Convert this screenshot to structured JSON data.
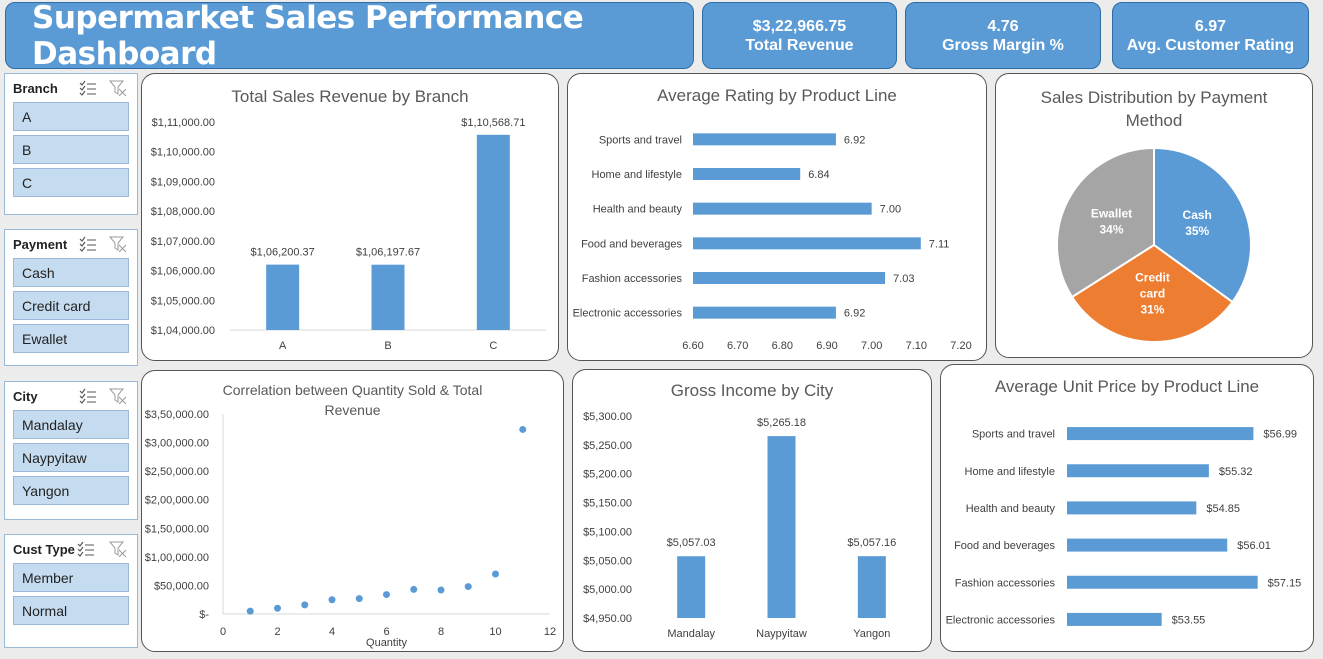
{
  "header": {
    "title": "Supermarket Sales Performance Dashboard"
  },
  "kpis": [
    {
      "value": "$3,22,966.75",
      "label": "Total Revenue"
    },
    {
      "value": "4.76",
      "label": "Gross Margin %"
    },
    {
      "value": "6.97",
      "label": "Avg. Customer  Rating"
    }
  ],
  "slicers": {
    "branch": {
      "title": "Branch",
      "items": [
        "A",
        "B",
        "C"
      ]
    },
    "payment": {
      "title": "Payment",
      "items": [
        "Cash",
        "Credit card",
        "Ewallet"
      ]
    },
    "city": {
      "title": "City",
      "items": [
        "Mandalay",
        "Naypyitaw",
        "Yangon"
      ]
    },
    "cust_type": {
      "title": "Cust Type",
      "items": [
        "Member",
        "Normal"
      ]
    }
  },
  "colors": {
    "accent": "#5b9bd5",
    "orange": "#ed7d31",
    "gray": "#a5a5a5"
  },
  "chart_data": [
    {
      "id": "branch",
      "type": "bar",
      "title": "Total Sales Revenue by Branch",
      "categories": [
        "A",
        "B",
        "C"
      ],
      "values": [
        106200.37,
        106197.67,
        110568.71
      ],
      "data_labels": [
        "$1,06,200.37",
        "$1,06,197.67",
        "$1,10,568.71"
      ],
      "ylim": [
        104000,
        111000
      ],
      "yticks": [
        "$1,04,000.00",
        "$1,05,000.00",
        "$1,06,000.00",
        "$1,07,000.00",
        "$1,08,000.00",
        "$1,09,000.00",
        "$1,10,000.00",
        "$1,11,000.00"
      ]
    },
    {
      "id": "rating",
      "type": "bar",
      "orientation": "horizontal",
      "title": "Average Rating by Product Line",
      "categories": [
        "Sports and travel",
        "Home and lifestyle",
        "Health and beauty",
        "Food and beverages",
        "Fashion accessories",
        "Electronic accessories"
      ],
      "values": [
        6.92,
        6.84,
        7.0,
        7.11,
        7.03,
        6.92
      ],
      "data_labels": [
        "6.92",
        "6.84",
        "7.00",
        "7.11",
        "7.03",
        "6.92"
      ],
      "xlim": [
        6.6,
        7.2
      ],
      "xticks": [
        "6.60",
        "6.70",
        "6.80",
        "6.90",
        "7.00",
        "7.10",
        "7.20"
      ]
    },
    {
      "id": "payment",
      "type": "pie",
      "title": "Sales Distribution by Payment Method",
      "slices": [
        {
          "name": "Cash",
          "value": 35,
          "label": "Cash",
          "pct": "35%",
          "color": "#5b9bd5"
        },
        {
          "name": "Credit card",
          "value": 31,
          "label": "Credit card",
          "pct": "31%",
          "color": "#ed7d31"
        },
        {
          "name": "Ewallet",
          "value": 34,
          "label": "Ewallet",
          "pct": "34%",
          "color": "#a5a5a5"
        }
      ]
    },
    {
      "id": "scatter",
      "type": "scatter",
      "title": "Correlation between Quantity Sold & Total Revenue",
      "xlabel": "Quantity",
      "x": [
        1,
        2,
        3,
        4,
        5,
        6,
        7,
        8,
        9,
        10,
        11
      ],
      "y": [
        5000,
        10000,
        16000,
        25000,
        27000,
        34000,
        43000,
        42000,
        48000,
        70000,
        322966.75
      ],
      "xlim": [
        0,
        12
      ],
      "ylim": [
        0,
        350000
      ],
      "xticks": [
        "0",
        "2",
        "4",
        "6",
        "8",
        "10",
        "12"
      ],
      "yticks": [
        "$-",
        "$50,000.00",
        "$1,00,000.00",
        "$1,50,000.00",
        "$2,00,000.00",
        "$2,50,000.00",
        "$3,00,000.00",
        "$3,50,000.00"
      ]
    },
    {
      "id": "city",
      "type": "bar",
      "title": "Gross Income by City",
      "categories": [
        "Mandalay",
        "Naypyitaw",
        "Yangon"
      ],
      "values": [
        5057.03,
        5265.18,
        5057.16
      ],
      "data_labels": [
        "$5,057.03",
        "$5,265.18",
        "$5,057.16"
      ],
      "ylim": [
        4950,
        5300
      ],
      "yticks": [
        "$4,950.00",
        "$5,000.00",
        "$5,050.00",
        "$5,100.00",
        "$5,150.00",
        "$5,200.00",
        "$5,250.00",
        "$5,300.00"
      ]
    },
    {
      "id": "price",
      "type": "bar",
      "orientation": "horizontal",
      "title": "Average Unit Price by Product Line",
      "categories": [
        "Sports and travel",
        "Home and lifestyle",
        "Health and beauty",
        "Food and beverages",
        "Fashion accessories",
        "Electronic accessories"
      ],
      "values": [
        56.99,
        55.32,
        54.85,
        56.01,
        57.15,
        53.55
      ],
      "data_labels": [
        "$56.99",
        "$55.32",
        "$54.85",
        "$56.01",
        "$57.15",
        "$53.55"
      ],
      "xlim": [
        50,
        57.8
      ]
    }
  ]
}
